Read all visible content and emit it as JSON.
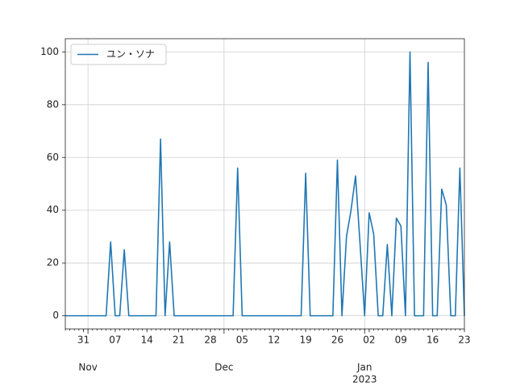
{
  "chart_data": {
    "type": "line",
    "x": [
      "2022-10-27",
      "2022-10-28",
      "2022-10-29",
      "2022-10-30",
      "2022-10-31",
      "2022-11-01",
      "2022-11-02",
      "2022-11-03",
      "2022-11-04",
      "2022-11-05",
      "2022-11-06",
      "2022-11-07",
      "2022-11-08",
      "2022-11-09",
      "2022-11-10",
      "2022-11-11",
      "2022-11-12",
      "2022-11-13",
      "2022-11-14",
      "2022-11-15",
      "2022-11-16",
      "2022-11-17",
      "2022-11-18",
      "2022-11-19",
      "2022-11-20",
      "2022-11-21",
      "2022-11-22",
      "2022-11-23",
      "2022-11-24",
      "2022-11-25",
      "2022-11-26",
      "2022-11-27",
      "2022-11-28",
      "2022-11-29",
      "2022-11-30",
      "2022-12-01",
      "2022-12-02",
      "2022-12-03",
      "2022-12-04",
      "2022-12-05",
      "2022-12-06",
      "2022-12-07",
      "2022-12-08",
      "2022-12-09",
      "2022-12-10",
      "2022-12-11",
      "2022-12-12",
      "2022-12-13",
      "2022-12-14",
      "2022-12-15",
      "2022-12-16",
      "2022-12-17",
      "2022-12-18",
      "2022-12-19",
      "2022-12-20",
      "2022-12-21",
      "2022-12-22",
      "2022-12-23",
      "2022-12-24",
      "2022-12-25",
      "2022-12-26",
      "2022-12-27",
      "2022-12-28",
      "2022-12-29",
      "2022-12-30",
      "2022-12-31",
      "2023-01-01",
      "2023-01-02",
      "2023-01-03",
      "2023-01-04",
      "2023-01-05",
      "2023-01-06",
      "2023-01-07",
      "2023-01-08",
      "2023-01-09",
      "2023-01-10",
      "2023-01-11",
      "2023-01-12",
      "2023-01-13",
      "2023-01-14",
      "2023-01-15",
      "2023-01-16",
      "2023-01-17",
      "2023-01-18",
      "2023-01-19",
      "2023-01-20",
      "2023-01-21",
      "2023-01-22",
      "2023-01-23"
    ],
    "series": [
      {
        "name": "ユン・ソナ",
        "color": "#1f77b4",
        "values": [
          0,
          0,
          0,
          0,
          0,
          0,
          0,
          0,
          0,
          0,
          28,
          0,
          0,
          25,
          0,
          0,
          0,
          0,
          0,
          0,
          0,
          67,
          0,
          28,
          0,
          0,
          0,
          0,
          0,
          0,
          0,
          0,
          0,
          0,
          0,
          0,
          0,
          0,
          56,
          0,
          0,
          0,
          0,
          0,
          0,
          0,
          0,
          0,
          0,
          0,
          0,
          0,
          0,
          54,
          0,
          0,
          0,
          0,
          0,
          0,
          59,
          0,
          30,
          40,
          53,
          27,
          0,
          39,
          31,
          0,
          0,
          27,
          0,
          37,
          34,
          0,
          100,
          0,
          0,
          0,
          96,
          0,
          0,
          48,
          42,
          0,
          0,
          56,
          0
        ]
      }
    ],
    "xlim": [
      "2022-10-27",
      "2023-01-23"
    ],
    "xticks": [
      {
        "value": "2022-10-31",
        "label": "31"
      },
      {
        "value": "2022-11-07",
        "label": "07"
      },
      {
        "value": "2022-11-14",
        "label": "14"
      },
      {
        "value": "2022-11-21",
        "label": "21"
      },
      {
        "value": "2022-11-28",
        "label": "28"
      },
      {
        "value": "2022-12-05",
        "label": "05"
      },
      {
        "value": "2022-12-12",
        "label": "12"
      },
      {
        "value": "2022-12-19",
        "label": "19"
      },
      {
        "value": "2022-12-26",
        "label": "26"
      },
      {
        "value": "2023-01-02",
        "label": "02"
      },
      {
        "value": "2023-01-09",
        "label": "09"
      },
      {
        "value": "2023-01-16",
        "label": "16"
      },
      {
        "value": "2023-01-23",
        "label": "23"
      }
    ],
    "month_ticks": [
      {
        "value": "2022-11-01",
        "label": "Nov"
      },
      {
        "value": "2022-12-01",
        "label": "Dec"
      },
      {
        "value": "2023-01-01",
        "label": "Jan",
        "year": "2023"
      }
    ],
    "ylim": [
      -5,
      105
    ],
    "yticks": [
      0,
      20,
      40,
      60,
      80,
      100
    ],
    "grid": true,
    "legend": "upper left"
  }
}
